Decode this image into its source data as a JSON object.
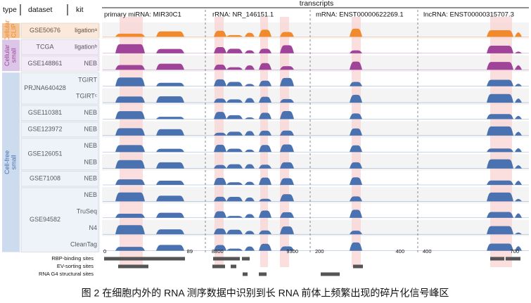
{
  "header": {
    "columns": [
      "type",
      "dataset",
      "kit"
    ],
    "transcripts": "transcripts"
  },
  "types": [
    {
      "name": [
        "Cellular",
        "CLIP"
      ],
      "color": "#f3c49a",
      "track_color": "#f08a2c",
      "datasets": [
        {
          "name": "GSE50676",
          "kits": [
            "ligationᵃ"
          ]
        }
      ]
    },
    {
      "name": [
        "Cellular",
        "small"
      ],
      "color": "#dcc6e8",
      "track_color": "#a0449a",
      "datasets": [
        {
          "name": "TCGA",
          "kits": [
            "ligationᵇ"
          ]
        },
        {
          "name": "GSE148861",
          "kits": [
            "NEB"
          ]
        }
      ]
    },
    {
      "name": [
        "Cell-free",
        "small"
      ],
      "color": "#cddbee",
      "track_color": "#4a72b0",
      "datasets": [
        {
          "name": "PRJNA640428",
          "kits": [
            "TGIRT",
            "TGIRTᶜ"
          ]
        },
        {
          "name": "GSE110381",
          "kits": [
            "NEB"
          ]
        },
        {
          "name": "GSE123972",
          "kits": [
            "NEB"
          ]
        },
        {
          "name": "GSE126051",
          "kits": [
            "NEB",
            "NEB"
          ]
        },
        {
          "name": "GSE71008",
          "kits": [
            "NEB"
          ]
        },
        {
          "name": "GSE94582",
          "kits": [
            "NEB",
            "TruSeq",
            "N4",
            "CleanTag"
          ]
        }
      ]
    }
  ],
  "panels": [
    {
      "title": "primary miRNA: MIR30C1",
      "ticks": [
        "0",
        "89"
      ]
    },
    {
      "title": "rRNA: NR_146151.1",
      "ticks": [
        "8800",
        "9300"
      ]
    },
    {
      "title": "mRNA: ENST00000622269.1",
      "ticks": [
        "200",
        "400"
      ]
    },
    {
      "title": "lncRNA: ENST00000315707.3",
      "ticks": [
        "400",
        "700"
      ]
    }
  ],
  "sites": [
    "RBP-binding sites",
    "EV-sorting sites",
    "RNA G4 structural sites"
  ],
  "caption": "图 2 在细胞内外的 RNA 测序数据中识别到长 RNA 前体上频繁出现的碎片化信号峰区"
}
